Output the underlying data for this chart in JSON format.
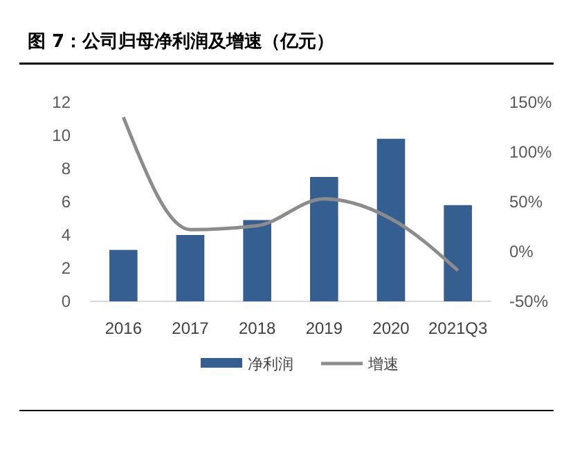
{
  "chart_data": {
    "type": "bar",
    "title": "图 7：公司归母净利润及增速（亿元）",
    "categories": [
      "2016",
      "2017",
      "2018",
      "2019",
      "2020",
      "2021Q3"
    ],
    "series": [
      {
        "name": "净利润",
        "color": "#365f91",
        "values": [
          3.1,
          4,
          4.9,
          7.5,
          9.8,
          5.8
        ]
      },
      {
        "name": "增速",
        "type": "line",
        "axis": "y2",
        "color": "#8c8c8c",
        "values": [
          135,
          22,
          26,
          53,
          33,
          -19
        ]
      }
    ],
    "ylim": [
      0,
      12
    ],
    "yticks": [
      0,
      2,
      4,
      6,
      8,
      10,
      12
    ],
    "y2lim": [
      -50,
      150
    ],
    "y2ticks": [
      {
        "value": -50,
        "label": "-50%"
      },
      {
        "value": 0,
        "label": "0%"
      },
      {
        "value": 50,
        "label": "50%"
      },
      {
        "value": 100,
        "label": "100%"
      },
      {
        "value": 150,
        "label": "150%"
      }
    ],
    "legend": "bottom",
    "grid": false,
    "marker": "none",
    "line_style": "solid"
  }
}
